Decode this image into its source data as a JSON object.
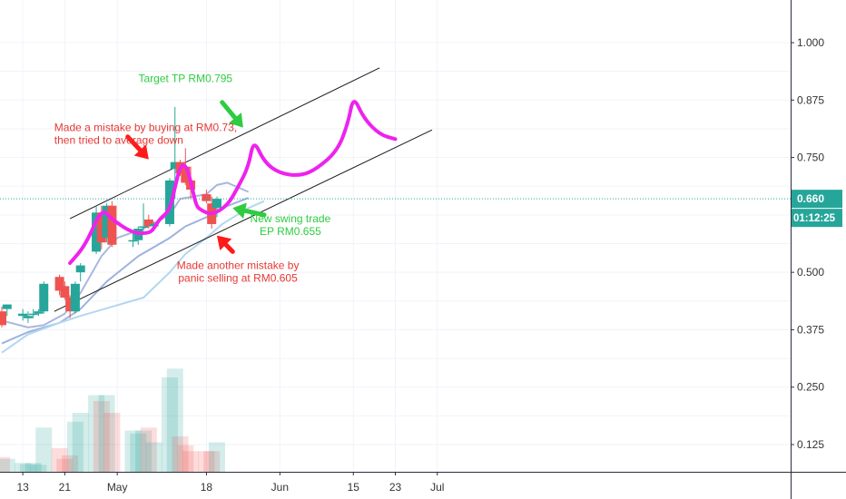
{
  "chart_data": {
    "type": "candlestick",
    "y_axis": {
      "ticks": [
        "1.000",
        "0.875",
        "0.750",
        "0.500",
        "0.375",
        "0.250",
        "0.125"
      ],
      "ylim": [
        0.05,
        1.07
      ]
    },
    "x_axis": {
      "ticks": [
        "13",
        "21",
        "May",
        "18",
        "Jun",
        "15",
        "23",
        "Jul"
      ],
      "first_date": "2020-04-09",
      "tick_dates": [
        "2020-04-13",
        "2020-04-21",
        "2020-05-01",
        "2020-05-18",
        "2020-06-01",
        "2020-06-15",
        "2020-06-23",
        "2020-07-01"
      ]
    },
    "current_price": {
      "value": 0.66,
      "label": "0.660",
      "countdown": "01:12:25",
      "color": "#26a69a"
    },
    "candles": [
      {
        "d": "2020-04-09",
        "o": 0.415,
        "h": 0.425,
        "l": 0.38,
        "c": 0.385
      },
      {
        "d": "2020-04-10",
        "o": 0.42,
        "h": 0.43,
        "l": 0.405,
        "c": 0.43
      },
      {
        "d": "2020-04-13",
        "o": 0.405,
        "h": 0.42,
        "l": 0.395,
        "c": 0.41
      },
      {
        "d": "2020-04-14",
        "o": 0.4,
        "h": 0.415,
        "l": 0.39,
        "c": 0.405
      },
      {
        "d": "2020-04-15",
        "o": 0.41,
        "h": 0.42,
        "l": 0.4,
        "c": 0.41
      },
      {
        "d": "2020-04-16",
        "o": 0.41,
        "h": 0.42,
        "l": 0.405,
        "c": 0.415
      },
      {
        "d": "2020-04-17",
        "o": 0.415,
        "h": 0.48,
        "l": 0.41,
        "c": 0.475
      },
      {
        "d": "2020-04-20",
        "o": 0.49,
        "h": 0.495,
        "l": 0.45,
        "c": 0.46
      },
      {
        "d": "2020-04-21",
        "o": 0.47,
        "h": 0.48,
        "l": 0.44,
        "c": 0.445
      },
      {
        "d": "2020-04-22",
        "o": 0.445,
        "h": 0.45,
        "l": 0.4,
        "c": 0.415
      },
      {
        "d": "2020-04-23",
        "o": 0.415,
        "h": 0.48,
        "l": 0.41,
        "c": 0.475
      },
      {
        "d": "2020-04-24",
        "o": 0.5,
        "h": 0.52,
        "l": 0.48,
        "c": 0.515
      },
      {
        "d": "2020-04-27",
        "o": 0.545,
        "h": 0.645,
        "l": 0.54,
        "c": 0.63
      },
      {
        "d": "2020-04-28",
        "o": 0.63,
        "h": 0.645,
        "l": 0.55,
        "c": 0.565
      },
      {
        "d": "2020-04-29",
        "o": 0.575,
        "h": 0.65,
        "l": 0.565,
        "c": 0.645
      },
      {
        "d": "2020-04-30",
        "o": 0.645,
        "h": 0.655,
        "l": 0.555,
        "c": 0.56
      },
      {
        "d": "2020-05-04",
        "o": 0.57,
        "h": 0.59,
        "l": 0.555,
        "c": 0.57
      },
      {
        "d": "2020-05-05",
        "o": 0.57,
        "h": 0.6,
        "l": 0.56,
        "c": 0.595
      },
      {
        "d": "2020-05-06",
        "o": 0.6,
        "h": 0.65,
        "l": 0.59,
        "c": 0.6
      },
      {
        "d": "2020-05-07",
        "o": 0.615,
        "h": 0.625,
        "l": 0.595,
        "c": 0.6
      },
      {
        "d": "2020-05-08",
        "o": 0.6,
        "h": 0.61,
        "l": 0.59,
        "c": 0.605
      },
      {
        "d": "2020-05-11",
        "o": 0.605,
        "h": 0.705,
        "l": 0.6,
        "c": 0.7
      },
      {
        "d": "2020-05-12",
        "o": 0.725,
        "h": 0.86,
        "l": 0.66,
        "c": 0.74
      },
      {
        "d": "2020-05-13",
        "o": 0.74,
        "h": 0.745,
        "l": 0.71,
        "c": 0.715
      },
      {
        "d": "2020-05-14",
        "o": 0.73,
        "h": 0.77,
        "l": 0.69,
        "c": 0.695
      },
      {
        "d": "2020-05-15",
        "o": 0.7,
        "h": 0.73,
        "l": 0.66,
        "c": 0.68
      },
      {
        "d": "2020-05-18",
        "o": 0.67,
        "h": 0.68,
        "l": 0.65,
        "c": 0.655
      },
      {
        "d": "2020-05-19",
        "o": 0.65,
        "h": 0.665,
        "l": 0.595,
        "c": 0.605
      },
      {
        "d": "2020-05-20",
        "o": 0.64,
        "h": 0.665,
        "l": 0.62,
        "c": 0.66
      }
    ],
    "volume": [
      0.025,
      0.022,
      0.015,
      0.013,
      0.015,
      0.012,
      0.075,
      0.04,
      0.022,
      0.028,
      0.085,
      0.1,
      0.13,
      0.12,
      0.13,
      0.1,
      0.07,
      0.065,
      0.07,
      0.075,
      0.05,
      0.16,
      0.175,
      0.06,
      0.045,
      0.035,
      0.035,
      0.035,
      0.05
    ],
    "trend_channel": [
      {
        "from": [
          "2020-04-19",
          0.415
        ],
        "to": [
          "2020-06-30",
          0.81
        ]
      },
      {
        "from": [
          "2020-04-22",
          0.617
        ],
        "to": [
          "2020-06-20",
          0.945
        ]
      }
    ],
    "moving_averages": [
      {
        "color": "#a9b7e0",
        "points": [
          [
            "2020-04-09",
            0.395
          ],
          [
            "2020-04-14",
            0.38
          ],
          [
            "2020-04-17",
            0.385
          ],
          [
            "2020-04-21",
            0.41
          ],
          [
            "2020-04-24",
            0.455
          ],
          [
            "2020-04-28",
            0.535
          ],
          [
            "2020-05-01",
            0.575
          ],
          [
            "2020-05-06",
            0.595
          ],
          [
            "2020-05-11",
            0.625
          ],
          [
            "2020-05-13",
            0.66
          ],
          [
            "2020-05-18",
            0.67
          ],
          [
            "2020-05-20",
            0.69
          ],
          [
            "2020-05-22",
            0.695
          ],
          [
            "2020-05-26",
            0.675
          ]
        ]
      },
      {
        "color": "#9cb3df",
        "points": [
          [
            "2020-04-09",
            0.345
          ],
          [
            "2020-04-14",
            0.37
          ],
          [
            "2020-04-20",
            0.39
          ],
          [
            "2020-04-24",
            0.42
          ],
          [
            "2020-04-29",
            0.48
          ],
          [
            "2020-05-05",
            0.535
          ],
          [
            "2020-05-11",
            0.575
          ],
          [
            "2020-05-14",
            0.6
          ],
          [
            "2020-05-18",
            0.62
          ],
          [
            "2020-05-21",
            0.64
          ],
          [
            "2020-05-26",
            0.662
          ]
        ]
      },
      {
        "color": "#b3d7f0",
        "points": [
          [
            "2020-04-09",
            0.325
          ],
          [
            "2020-04-14",
            0.365
          ],
          [
            "2020-04-20",
            0.39
          ],
          [
            "2020-04-24",
            0.405
          ],
          [
            "2020-04-30",
            0.425
          ],
          [
            "2020-05-06",
            0.445
          ],
          [
            "2020-05-11",
            0.5
          ],
          [
            "2020-05-14",
            0.54
          ],
          [
            "2020-05-18",
            0.575
          ],
          [
            "2020-05-21",
            0.605
          ],
          [
            "2020-05-26",
            0.64
          ],
          [
            "2020-05-29",
            0.655
          ]
        ]
      }
    ],
    "projection_path": [
      [
        "2020-04-22",
        0.52
      ],
      [
        "2020-04-25",
        0.56
      ],
      [
        "2020-04-28",
        0.64
      ],
      [
        "2020-04-30",
        0.615
      ],
      [
        "2020-05-04",
        0.585
      ],
      [
        "2020-05-07",
        0.585
      ],
      [
        "2020-05-08",
        0.595
      ],
      [
        "2020-05-09",
        0.615
      ],
      [
        "2020-05-11",
        0.635
      ],
      [
        "2020-05-12",
        0.685
      ],
      [
        "2020-05-13",
        0.73
      ],
      [
        "2020-05-14",
        0.735
      ],
      [
        "2020-05-15",
        0.7
      ],
      [
        "2020-05-16",
        0.645
      ],
      [
        "2020-05-17",
        0.635
      ],
      [
        "2020-05-19",
        0.625
      ],
      [
        "2020-05-22",
        0.645
      ],
      [
        "2020-05-24",
        0.685
      ],
      [
        "2020-05-26",
        0.73
      ],
      [
        "2020-05-27",
        0.79
      ],
      [
        "2020-05-29",
        0.74
      ],
      [
        "2020-06-01",
        0.715
      ],
      [
        "2020-06-05",
        0.71
      ],
      [
        "2020-06-08",
        0.725
      ],
      [
        "2020-06-12",
        0.765
      ],
      [
        "2020-06-14",
        0.825
      ],
      [
        "2020-06-15",
        0.885
      ],
      [
        "2020-06-17",
        0.835
      ],
      [
        "2020-06-20",
        0.8
      ],
      [
        "2020-06-23",
        0.79
      ]
    ],
    "annotations": [
      {
        "id": "mistake-buy",
        "lines": [
          "Made a mistake by buying at RM0.73,",
          "then tried to average down"
        ],
        "color": "#e53935",
        "date": "2020-04-19",
        "value": 0.807,
        "anchor": "start"
      },
      {
        "id": "target",
        "lines": [
          "Target TP RM0.795"
        ],
        "color": "#2ecc40",
        "date": "2020-05-14",
        "value": 0.914,
        "anchor": "middle"
      },
      {
        "id": "new-swing",
        "lines": [
          "New swing trade",
          "EP RM0.655"
        ],
        "color": "#2ecc40",
        "date": "2020-06-03",
        "value": 0.609,
        "anchor": "middle"
      },
      {
        "id": "panic-sell",
        "lines": [
          "Made another mistake by",
          "panic selling at RM0.605"
        ],
        "color": "#e53935",
        "date": "2020-05-24",
        "value": 0.507,
        "anchor": "middle"
      }
    ],
    "arrows": [
      {
        "color": "#ff1a1a",
        "from": [
          "2020-05-03",
          0.795
        ],
        "to": [
          "2020-05-07",
          0.746
        ]
      },
      {
        "color": "#2ecc40",
        "from": [
          "2020-05-21",
          0.87
        ],
        "to": [
          "2020-05-25",
          0.815
        ]
      },
      {
        "color": "#2ecc40",
        "from": [
          "2020-05-29",
          0.625
        ],
        "to": [
          "2020-05-23",
          0.64
        ]
      },
      {
        "color": "#ff1a1a",
        "from": [
          "2020-05-23",
          0.545
        ],
        "to": [
          "2020-05-20",
          0.58
        ]
      }
    ]
  }
}
